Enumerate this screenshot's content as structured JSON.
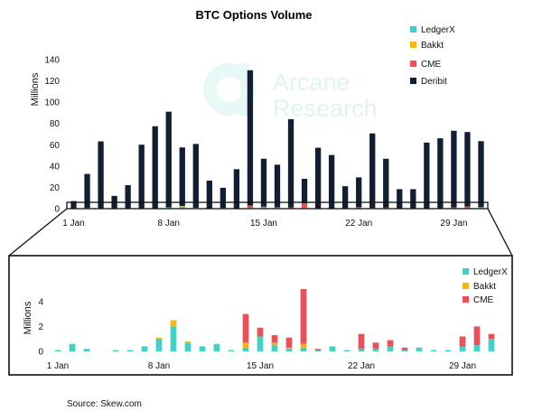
{
  "source": "Source: Skew.com",
  "watermark": {
    "line1": "Arcane",
    "line2": "Research"
  },
  "colors": {
    "LedgerX": "#45cfc5",
    "Bakkt": "#f2b619",
    "CME": "#e9525b",
    "Deribit": "#141e33"
  },
  "chart_data": [
    {
      "type": "bar",
      "stacked": true,
      "title": "BTC Options Volume",
      "ylabel": "Millions",
      "xlabel": "",
      "ylim": [
        0,
        140
      ],
      "yticks": [
        0,
        20,
        40,
        60,
        80,
        100,
        120,
        140
      ],
      "categories": [
        "1 Jan",
        "2 Jan",
        "3 Jan",
        "4 Jan",
        "5 Jan",
        "6 Jan",
        "7 Jan",
        "8 Jan",
        "9 Jan",
        "10 Jan",
        "11 Jan",
        "12 Jan",
        "13 Jan",
        "14 Jan",
        "15 Jan",
        "16 Jan",
        "17 Jan",
        "18 Jan",
        "19 Jan",
        "20 Jan",
        "21 Jan",
        "22 Jan",
        "23 Jan",
        "24 Jan",
        "25 Jan",
        "26 Jan",
        "27 Jan",
        "28 Jan",
        "29 Jan",
        "30 Jan",
        "31 Jan"
      ],
      "xtick_labels": [
        {
          "index": 0,
          "label": "1 Jan"
        },
        {
          "index": 7,
          "label": "8 Jan"
        },
        {
          "index": 14,
          "label": "15 Jan"
        },
        {
          "index": 21,
          "label": "22 Jan"
        },
        {
          "index": 28,
          "label": "29 Jan"
        }
      ],
      "legend": [
        "LedgerX",
        "Bakkt",
        "CME",
        "Deribit"
      ],
      "legend_position": "top-right",
      "series": [
        {
          "name": "LedgerX",
          "values": [
            0.1,
            0.6,
            0.2,
            0,
            0.1,
            0.1,
            0.4,
            1,
            2,
            0.7,
            0.4,
            0.6,
            0.1,
            0.3,
            1.2,
            0.5,
            0.2,
            0.3,
            0.1,
            0.4,
            0.1,
            0.2,
            0.2,
            0.4,
            0.1,
            0.3,
            0.1,
            0.1,
            0.4,
            0.5,
            1
          ]
        },
        {
          "name": "Bakkt",
          "values": [
            0,
            0,
            0,
            0,
            0,
            0,
            0,
            0.1,
            0.5,
            0.1,
            0,
            0,
            0,
            0.4,
            0,
            0.2,
            0.1,
            0.3,
            0,
            0,
            0,
            0,
            0,
            0,
            0,
            0,
            0,
            0,
            0,
            0,
            0
          ]
        },
        {
          "name": "CME",
          "values": [
            0,
            0,
            0,
            0,
            0,
            0,
            0,
            0,
            0,
            0,
            0,
            0,
            0,
            2.3,
            0.7,
            0.6,
            0.8,
            4.4,
            0.1,
            0,
            0,
            1.2,
            0.5,
            0.5,
            0.2,
            0,
            0,
            0,
            0.8,
            1.5,
            0.4
          ]
        },
        {
          "name": "Deribit",
          "values": [
            7,
            32,
            63,
            12,
            22,
            60,
            77,
            90,
            55,
            60,
            26,
            19,
            37,
            127,
            45,
            40,
            83,
            23,
            57,
            50,
            21,
            28,
            70,
            46,
            18,
            18,
            62,
            66,
            72,
            70,
            62
          ]
        }
      ]
    },
    {
      "type": "bar",
      "stacked": true,
      "title": "",
      "ylabel": "Millions",
      "xlabel": "",
      "ylim": [
        0,
        5
      ],
      "yticks": [
        0,
        2,
        4
      ],
      "categories": [
        "1 Jan",
        "2 Jan",
        "3 Jan",
        "4 Jan",
        "5 Jan",
        "6 Jan",
        "7 Jan",
        "8 Jan",
        "9 Jan",
        "10 Jan",
        "11 Jan",
        "12 Jan",
        "13 Jan",
        "14 Jan",
        "15 Jan",
        "16 Jan",
        "17 Jan",
        "18 Jan",
        "19 Jan",
        "20 Jan",
        "21 Jan",
        "22 Jan",
        "23 Jan",
        "24 Jan",
        "25 Jan",
        "26 Jan",
        "27 Jan",
        "28 Jan",
        "29 Jan",
        "30 Jan",
        "31 Jan"
      ],
      "xtick_labels": [
        {
          "index": 0,
          "label": "1 Jan"
        },
        {
          "index": 7,
          "label": "8 Jan"
        },
        {
          "index": 14,
          "label": "15 Jan"
        },
        {
          "index": 21,
          "label": "22 Jan"
        },
        {
          "index": 28,
          "label": "29 Jan"
        }
      ],
      "legend": [
        "LedgerX",
        "Bakkt",
        "CME"
      ],
      "legend_position": "top-right",
      "series": [
        {
          "name": "LedgerX",
          "values": [
            0.1,
            0.6,
            0.2,
            0,
            0.1,
            0.1,
            0.4,
            1,
            2,
            0.7,
            0.4,
            0.6,
            0.1,
            0.3,
            1.2,
            0.5,
            0.2,
            0.3,
            0.1,
            0.4,
            0.1,
            0.2,
            0.2,
            0.4,
            0.1,
            0.3,
            0.1,
            0.1,
            0.4,
            0.5,
            1
          ]
        },
        {
          "name": "Bakkt",
          "values": [
            0,
            0,
            0,
            0,
            0,
            0,
            0,
            0.1,
            0.5,
            0.1,
            0,
            0,
            0,
            0.4,
            0,
            0.2,
            0.1,
            0.3,
            0,
            0,
            0,
            0,
            0,
            0,
            0,
            0,
            0,
            0,
            0,
            0,
            0
          ]
        },
        {
          "name": "CME",
          "values": [
            0,
            0,
            0,
            0,
            0,
            0,
            0,
            0,
            0,
            0,
            0,
            0,
            0,
            2.3,
            0.7,
            0.6,
            0.8,
            4.4,
            0.1,
            0,
            0,
            1.2,
            0.5,
            0.5,
            0.2,
            0,
            0,
            0,
            0.8,
            1.5,
            0.4
          ]
        }
      ]
    }
  ]
}
